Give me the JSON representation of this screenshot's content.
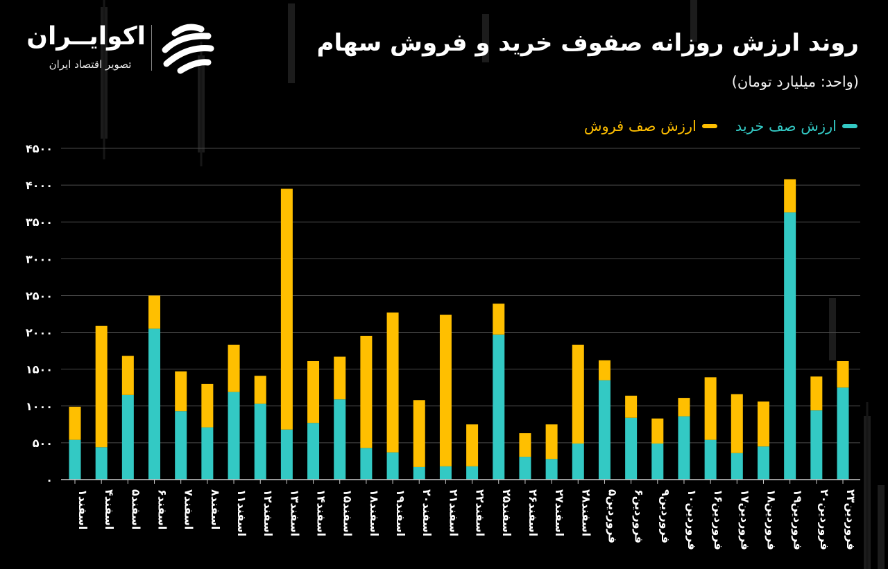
{
  "header": {
    "title": "روند ارزش روزانه صفوف خرید و فروش سهام",
    "subtitle": "(واحد: میلیارد تومان)"
  },
  "brand": {
    "name": "اکوایــران",
    "tagline": "تصویر اقتصاد ایران",
    "icon": "ecoiran-logo-icon"
  },
  "legend": {
    "buy_label": "ارزش صف خرید",
    "sell_label": "ارزش صف فروش"
  },
  "colors": {
    "background": "#000000",
    "buy": "#33c9c4",
    "sell": "#ffbf00",
    "grid": "#4a4a4a",
    "axis": "#cccccc"
  },
  "chart_data": {
    "type": "bar",
    "stacked": true,
    "ylim": [
      0,
      4500
    ],
    "yticks": [
      "۰",
      "۵۰۰",
      "۱۰۰۰",
      "۱۵۰۰",
      "۲۰۰۰",
      "۲۵۰۰",
      "۳۰۰۰",
      "۳۵۰۰",
      "۴۰۰۰",
      "۴۵۰۰"
    ],
    "ytick_values": [
      0,
      500,
      1000,
      1500,
      2000,
      2500,
      3000,
      3500,
      4000,
      4500
    ],
    "grid": true,
    "legend_position": "top-right",
    "categories": [
      "اسفند۱",
      "اسفند۴",
      "اسفند۵",
      "اسفند۶",
      "اسفند۷",
      "اسفند۸",
      "اسفند۱۱",
      "اسفند۱۲",
      "اسفند۱۳",
      "اسفند۱۴",
      "اسفند۱۵",
      "اسفند۱۸",
      "اسفند۱۹",
      "اسفند۲۰",
      "اسفند۲۱",
      "اسفند۲۲",
      "اسفند۲۵",
      "اسفند۲۶",
      "اسفند۲۷",
      "اسفند۲۸",
      "فروردین۵",
      "فروردین۶",
      "فروردین۹",
      "فروردین۱۰",
      "فروردین۱۶",
      "فروردین۱۷",
      "فروردین۱۸",
      "فروردین۱۹",
      "فروردین۲۰",
      "فروردین۲۳"
    ],
    "series": [
      {
        "name": "ارزش صف خرید",
        "values": [
          540,
          440,
          1150,
          2050,
          930,
          710,
          1190,
          1030,
          680,
          770,
          1090,
          430,
          370,
          170,
          180,
          180,
          1970,
          310,
          280,
          490,
          1350,
          840,
          490,
          860,
          540,
          360,
          450,
          3630,
          940,
          1250
        ]
      },
      {
        "name": "ارزش صف فروش",
        "values": [
          450,
          1650,
          530,
          450,
          540,
          590,
          640,
          380,
          3270,
          840,
          580,
          1520,
          1900,
          910,
          2060,
          570,
          420,
          320,
          470,
          1340,
          270,
          300,
          340,
          250,
          850,
          800,
          610,
          450,
          460,
          360
        ]
      }
    ]
  }
}
